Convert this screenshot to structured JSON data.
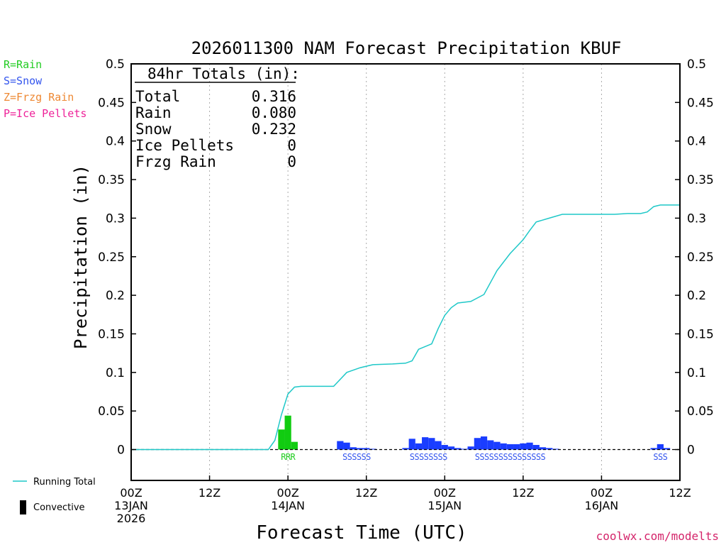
{
  "chart_data": {
    "type": "bar",
    "title": "2026011300 NAM Forecast Precipitation KBUF",
    "xlabel": "Forecast Time (UTC)",
    "ylabel": "Precipitation (in)",
    "ylim": [
      0,
      0.5
    ],
    "y_display_min": -0.04,
    "xlim_hours": [
      0,
      84
    ],
    "y_ticks": [
      "0",
      "0.05",
      "0.1",
      "0.15",
      "0.2",
      "0.25",
      "0.3",
      "0.35",
      "0.4",
      "0.45",
      "0.5"
    ],
    "y_tick_values": [
      0,
      0.05,
      0.1,
      0.15,
      0.2,
      0.25,
      0.3,
      0.35,
      0.4,
      0.45,
      0.5
    ],
    "x_ticks": [
      {
        "hour": 0,
        "lines": [
          "00Z",
          "13JAN",
          "2026"
        ]
      },
      {
        "hour": 12,
        "lines": [
          "12Z"
        ]
      },
      {
        "hour": 24,
        "lines": [
          "00Z",
          "14JAN"
        ]
      },
      {
        "hour": 36,
        "lines": [
          "12Z"
        ]
      },
      {
        "hour": 48,
        "lines": [
          "00Z",
          "15JAN"
        ]
      },
      {
        "hour": 60,
        "lines": [
          "12Z"
        ]
      },
      {
        "hour": 72,
        "lines": [
          "00Z",
          "16JAN"
        ]
      },
      {
        "hour": 84,
        "lines": [
          "12Z"
        ]
      }
    ],
    "grid_hours": [
      12,
      24,
      36,
      48,
      60,
      72
    ],
    "totals_box": {
      "heading": "84hr Totals (in):",
      "rows": [
        {
          "label": "Total",
          "value": "0.316"
        },
        {
          "label": "Rain",
          "value": "0.080"
        },
        {
          "label": "Snow",
          "value": "0.232"
        },
        {
          "label": "Ice Pellets",
          "value": "0"
        },
        {
          "label": "Frzg Rain",
          "value": "0"
        }
      ]
    },
    "type_legend": [
      {
        "text": "R=Rain",
        "color": "#22cc22"
      },
      {
        "text": "S=Snow",
        "color": "#3355ee"
      },
      {
        "text": "Z=Frzg Rain",
        "color": "#ee8833"
      },
      {
        "text": "P=Ice Pellets",
        "color": "#ee2299"
      }
    ],
    "bottom_legend": [
      {
        "text": "Running Total",
        "kind": "line",
        "color": "#1fc8c8"
      },
      {
        "text": "Convective",
        "kind": "bar",
        "color": "#000000"
      }
    ],
    "colors": {
      "rain": "#11cc11",
      "snow": "#1a3dff",
      "running_total": "#1fc8c8"
    },
    "series": [
      {
        "name": "Rain",
        "color": "#11cc11",
        "bars": [
          {
            "hour": 23,
            "value": 0.026
          },
          {
            "hour": 24,
            "value": 0.044
          },
          {
            "hour": 25,
            "value": 0.01
          }
        ]
      },
      {
        "name": "Snow",
        "color": "#1a3dff",
        "bars": [
          {
            "hour": 32,
            "value": 0.011
          },
          {
            "hour": 33,
            "value": 0.009
          },
          {
            "hour": 34,
            "value": 0.003
          },
          {
            "hour": 35,
            "value": 0.002
          },
          {
            "hour": 36,
            "value": 0.002
          },
          {
            "hour": 37,
            "value": 0.001
          },
          {
            "hour": 42,
            "value": 0.002
          },
          {
            "hour": 43,
            "value": 0.014
          },
          {
            "hour": 44,
            "value": 0.008
          },
          {
            "hour": 45,
            "value": 0.016
          },
          {
            "hour": 46,
            "value": 0.015
          },
          {
            "hour": 47,
            "value": 0.011
          },
          {
            "hour": 48,
            "value": 0.006
          },
          {
            "hour": 49,
            "value": 0.004
          },
          {
            "hour": 50,
            "value": 0.002
          },
          {
            "hour": 51,
            "value": 0.001
          },
          {
            "hour": 52,
            "value": 0.004
          },
          {
            "hour": 53,
            "value": 0.015
          },
          {
            "hour": 54,
            "value": 0.017
          },
          {
            "hour": 55,
            "value": 0.012
          },
          {
            "hour": 56,
            "value": 0.01
          },
          {
            "hour": 57,
            "value": 0.008
          },
          {
            "hour": 58,
            "value": 0.007
          },
          {
            "hour": 59,
            "value": 0.007
          },
          {
            "hour": 60,
            "value": 0.008
          },
          {
            "hour": 61,
            "value": 0.009
          },
          {
            "hour": 62,
            "value": 0.006
          },
          {
            "hour": 63,
            "value": 0.003
          },
          {
            "hour": 64,
            "value": 0.002
          },
          {
            "hour": 65,
            "value": 0.001
          },
          {
            "hour": 80,
            "value": 0.002
          },
          {
            "hour": 81,
            "value": 0.007
          },
          {
            "hour": 82,
            "value": 0.002
          }
        ]
      }
    ],
    "type_markers": [
      {
        "hour_start": 23.0,
        "hour_end": 26.0,
        "text": "RRR",
        "color": "#22cc22"
      },
      {
        "hour_start": 32.0,
        "hour_end": 38.0,
        "text": "SSSSSS",
        "color": "#3355ee"
      },
      {
        "hour_start": 42.0,
        "hour_end": 50.0,
        "text": "SSSSSSSS",
        "color": "#3355ee"
      },
      {
        "hour_start": 51.0,
        "hour_end": 66.0,
        "text": "SSSSSSSSSSSSSSS",
        "color": "#3355ee"
      },
      {
        "hour_start": 80.0,
        "hour_end": 83.0,
        "text": "SSS",
        "color": "#3355ee"
      }
    ],
    "running_total": {
      "name": "Running Total",
      "color": "#1fc8c8",
      "x": [
        0,
        21,
        22,
        23,
        24,
        25,
        26,
        27,
        31,
        33,
        35,
        37,
        40,
        42,
        43,
        44,
        46,
        47,
        48,
        49,
        50,
        51,
        52,
        54,
        56,
        58,
        60,
        61,
        62,
        64,
        66,
        70,
        74,
        76,
        78,
        79,
        80,
        81,
        84
      ],
      "y": [
        0.0,
        0.0,
        0.012,
        0.045,
        0.072,
        0.081,
        0.082,
        0.082,
        0.082,
        0.1,
        0.106,
        0.11,
        0.111,
        0.112,
        0.115,
        0.13,
        0.137,
        0.157,
        0.174,
        0.184,
        0.19,
        0.191,
        0.192,
        0.201,
        0.232,
        0.254,
        0.272,
        0.284,
        0.295,
        0.3,
        0.305,
        0.305,
        0.305,
        0.306,
        0.306,
        0.308,
        0.315,
        0.317,
        0.317
      ]
    },
    "watermark": "coolwx.com/modelts"
  }
}
